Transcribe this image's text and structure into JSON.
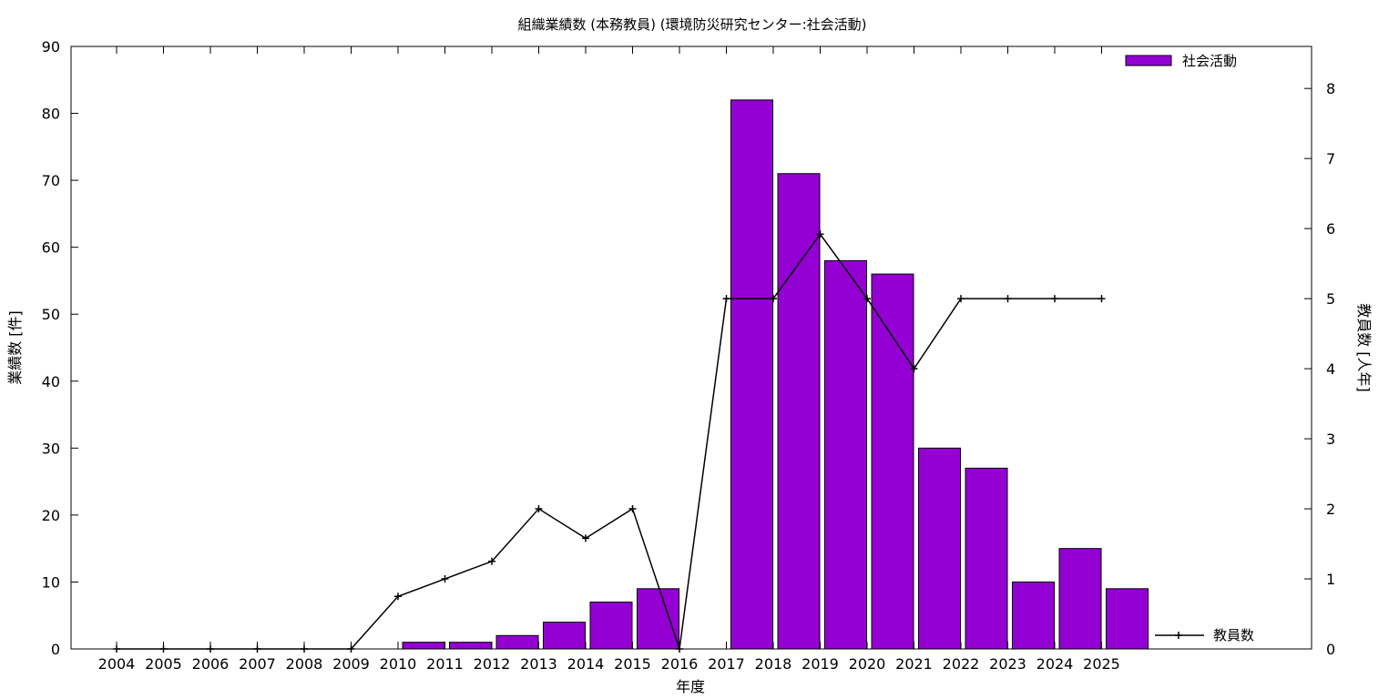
{
  "chart_data": {
    "type": "bar",
    "title": "組織業績数 (本務教員) (環境防災研究センター:社会活動)",
    "xlabel": "年度",
    "ylabel": "業績数 [件]",
    "y2label": "教員数 [人年]",
    "categories": [
      "2004",
      "2005",
      "2006",
      "2007",
      "2008",
      "2009",
      "2010",
      "2011",
      "2012",
      "2013",
      "2014",
      "2015",
      "2016",
      "2017",
      "2018",
      "2019",
      "2020",
      "2021",
      "2022",
      "2023",
      "2024",
      "2025"
    ],
    "ylim": [
      0,
      90
    ],
    "y2lim": [
      0,
      8.6
    ],
    "yticks": [
      0,
      10,
      20,
      30,
      40,
      50,
      60,
      70,
      80,
      90
    ],
    "y2ticks": [
      0,
      1,
      2,
      3,
      4,
      5,
      6,
      7,
      8
    ],
    "grid": false,
    "series": [
      {
        "name": "社会活動",
        "type": "bar",
        "axis": "left",
        "color": "#9400d3",
        "values": [
          0,
          0,
          0,
          0,
          0,
          0,
          1,
          1,
          2,
          4,
          7,
          9,
          0,
          82,
          71,
          58,
          56,
          30,
          27,
          10,
          15,
          9
        ],
        "legend_position": "top-right"
      },
      {
        "name": "教員数",
        "type": "line",
        "axis": "right",
        "color": "#000000",
        "marker": "plus",
        "values": [
          0,
          0,
          0,
          0,
          0,
          0,
          0.75,
          1,
          1.25,
          2,
          1.58,
          2,
          0,
          5,
          5,
          5.92,
          5,
          4,
          5,
          5,
          5,
          5
        ],
        "legend_position": "bottom-right"
      }
    ]
  }
}
